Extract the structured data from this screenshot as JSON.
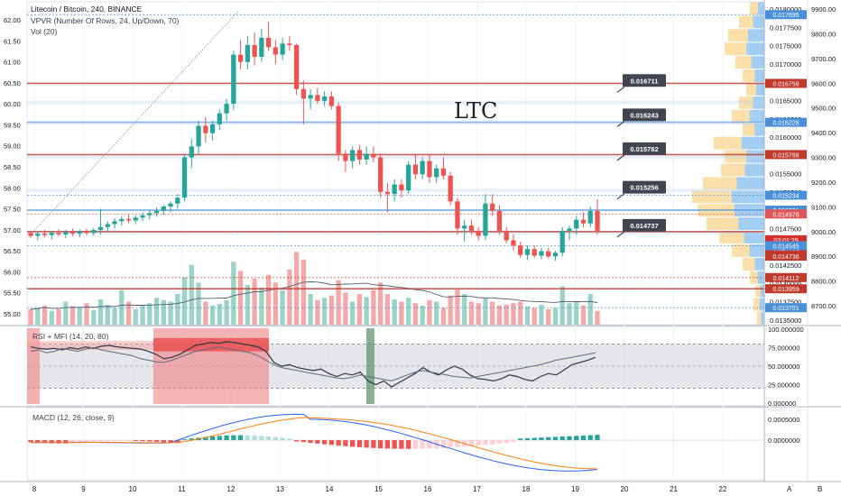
{
  "header": {
    "symbol_line": "Litecoin / Bitcoin, 240, BINANCE",
    "indicator_vpvr": "VPVR (Number Of Rows, 24, Up/Down, 70)",
    "indicator_vol": "Vol (20)",
    "rsi_title": "RSI + MFI (14, 20, 80)",
    "macd_title": "MACD (12, 26, close, 9)",
    "big_label": "LTC"
  },
  "chart_data": [
    {
      "type": "candlestick",
      "x_tick_labels": [
        "8",
        "9",
        "10",
        "11",
        "12",
        "13",
        "14",
        "15",
        "16",
        "17",
        "18",
        "19",
        "20",
        "21",
        "22"
      ],
      "right_axis_labels": [
        "0.0180000",
        "0.0177500",
        "0.0175000",
        "0.0170000",
        "0.0167500",
        "0.0165000",
        "0.0162500",
        "0.0160000",
        "0.0157500",
        "0.0155000",
        "0.0152500",
        "0.0150000",
        "0.0147500",
        "0.0145000",
        "0.0142500",
        "0.0140000",
        "0.0137500",
        "0.0135000"
      ],
      "left_axis_labels": [
        "62.00",
        "61.50",
        "61.00",
        "60.50",
        "60.00",
        "59.50",
        "59.00",
        "58.50",
        "58.00",
        "57.50",
        "57.00",
        "56.50",
        "56.00",
        "55.50",
        "55.00"
      ],
      "far_right_axis_labels": [
        "9900.00",
        "9800.00",
        "9700.00",
        "9600.00",
        "9500.00",
        "9400.00",
        "9300.00",
        "9200.00",
        "9100.00",
        "9000.00",
        "8900.00",
        "8800.00",
        "8700.00"
      ],
      "ylim": [
        0.01347,
        0.01787
      ],
      "candles": [
        [
          0.01472,
          0.01475,
          0.01465,
          0.01468
        ],
        [
          0.01468,
          0.01473,
          0.01462,
          0.01471
        ],
        [
          0.01471,
          0.01476,
          0.01466,
          0.01469
        ],
        [
          0.01469,
          0.01474,
          0.01463,
          0.01472
        ],
        [
          0.01472,
          0.01477,
          0.01467,
          0.0147
        ],
        [
          0.0147,
          0.01476,
          0.01465,
          0.01473
        ],
        [
          0.01473,
          0.01478,
          0.01468,
          0.01471
        ],
        [
          0.01471,
          0.01477,
          0.01466,
          0.01474
        ],
        [
          0.01474,
          0.01478,
          0.01469,
          0.01472
        ],
        [
          0.01472,
          0.01479,
          0.01468,
          0.01476
        ],
        [
          0.01476,
          0.01505,
          0.0147,
          0.0148
        ],
        [
          0.0148,
          0.01488,
          0.01474,
          0.01484
        ],
        [
          0.01484,
          0.01492,
          0.01478,
          0.01488
        ],
        [
          0.01488,
          0.01495,
          0.01482,
          0.01491
        ],
        [
          0.01491,
          0.01497,
          0.01485,
          0.01489
        ],
        [
          0.01489,
          0.01496,
          0.01484,
          0.01493
        ],
        [
          0.01493,
          0.015,
          0.01488,
          0.01496
        ],
        [
          0.01496,
          0.01503,
          0.0149,
          0.01499
        ],
        [
          0.01499,
          0.01507,
          0.01494,
          0.01502
        ],
        [
          0.01502,
          0.0151,
          0.01496,
          0.01508
        ],
        [
          0.01508,
          0.01515,
          0.015,
          0.01512
        ],
        [
          0.01512,
          0.01525,
          0.01505,
          0.0152
        ],
        [
          0.0152,
          0.0158,
          0.01515,
          0.01575
        ],
        [
          0.01575,
          0.016,
          0.0156,
          0.0159
        ],
        [
          0.0159,
          0.01625,
          0.0158,
          0.01618
        ],
        [
          0.01618,
          0.0163,
          0.01595,
          0.01608
        ],
        [
          0.01608,
          0.01625,
          0.01598,
          0.0162
        ],
        [
          0.0162,
          0.0164,
          0.01612,
          0.01635
        ],
        [
          0.01635,
          0.01655,
          0.01625,
          0.01648
        ],
        [
          0.01648,
          0.0172,
          0.0164,
          0.01715
        ],
        [
          0.01715,
          0.01735,
          0.01695,
          0.01705
        ],
        [
          0.01705,
          0.0174,
          0.01695,
          0.01728
        ],
        [
          0.01728,
          0.01745,
          0.017,
          0.01712
        ],
        [
          0.01712,
          0.0175,
          0.01705,
          0.01738
        ],
        [
          0.01738,
          0.0176,
          0.0172,
          0.01725
        ],
        [
          0.01725,
          0.01735,
          0.01702,
          0.01715
        ],
        [
          0.01715,
          0.01738,
          0.01708,
          0.0173
        ],
        [
          0.0173,
          0.0174,
          0.0172,
          0.01728
        ],
        [
          0.01728,
          0.0173,
          0.0166,
          0.01668
        ],
        [
          0.01668,
          0.0168,
          0.0162,
          0.01655
        ],
        [
          0.01655,
          0.01668,
          0.0164,
          0.0166
        ],
        [
          0.0166,
          0.0167,
          0.01648,
          0.01652
        ],
        [
          0.01652,
          0.01665,
          0.01645,
          0.01658
        ],
        [
          0.01658,
          0.01665,
          0.0164,
          0.01645
        ],
        [
          0.01645,
          0.0165,
          0.0157,
          0.0158
        ],
        [
          0.0158,
          0.01585,
          0.01555,
          0.0157
        ],
        [
          0.0157,
          0.0159,
          0.0156,
          0.01585
        ],
        [
          0.01585,
          0.01592,
          0.01565,
          0.01572
        ],
        [
          0.01572,
          0.0159,
          0.01565,
          0.0158
        ],
        [
          0.0158,
          0.0159,
          0.01568,
          0.01575
        ],
        [
          0.01575,
          0.0158,
          0.0152,
          0.01528
        ],
        [
          0.01528,
          0.0154,
          0.015,
          0.01525
        ],
        [
          0.01525,
          0.01545,
          0.01515,
          0.01538
        ],
        [
          0.01538,
          0.01545,
          0.0152,
          0.0153
        ],
        [
          0.0153,
          0.0157,
          0.01525,
          0.01565
        ],
        [
          0.01565,
          0.0158,
          0.01545,
          0.01552
        ],
        [
          0.01552,
          0.01575,
          0.01545,
          0.0157
        ],
        [
          0.0157,
          0.0158,
          0.0154,
          0.01548
        ],
        [
          0.01548,
          0.01565,
          0.0154,
          0.0156
        ],
        [
          0.0156,
          0.01575,
          0.01545,
          0.0155
        ],
        [
          0.0155,
          0.01555,
          0.0151,
          0.01515
        ],
        [
          0.01515,
          0.0152,
          0.0147,
          0.01478
        ],
        [
          0.01478,
          0.0149,
          0.0146,
          0.01482
        ],
        [
          0.01482,
          0.0149,
          0.0147,
          0.01475
        ],
        [
          0.01475,
          0.0148,
          0.01462,
          0.01468
        ],
        [
          0.01468,
          0.01525,
          0.01462,
          0.01512
        ],
        [
          0.01512,
          0.01525,
          0.01495,
          0.01502
        ],
        [
          0.01502,
          0.0151,
          0.0147,
          0.01475
        ],
        [
          0.01475,
          0.0148,
          0.01458,
          0.01462
        ],
        [
          0.01462,
          0.0147,
          0.01448,
          0.01455
        ],
        [
          0.01455,
          0.0146,
          0.01438,
          0.01442
        ],
        [
          0.01442,
          0.01455,
          0.01435,
          0.0145
        ],
        [
          0.0145,
          0.01455,
          0.01438,
          0.01441
        ],
        [
          0.01441,
          0.01452,
          0.01436,
          0.01447
        ],
        [
          0.01447,
          0.01452,
          0.01437,
          0.0144
        ],
        [
          0.0144,
          0.01448,
          0.01434,
          0.01445
        ],
        [
          0.01445,
          0.0148,
          0.0144,
          0.01475
        ],
        [
          0.01475,
          0.01482,
          0.01462,
          0.01478
        ],
        [
          0.01478,
          0.01495,
          0.0147,
          0.0149
        ],
        [
          0.0149,
          0.015,
          0.0148,
          0.01485
        ],
        [
          0.01485,
          0.01508,
          0.0148,
          0.01502
        ],
        [
          0.01502,
          0.01518,
          0.0147,
          0.01475
        ]
      ],
      "volumes": [
        0.2,
        0.22,
        0.25,
        0.18,
        0.2,
        0.3,
        0.24,
        0.22,
        0.28,
        0.19,
        0.33,
        0.26,
        0.22,
        0.45,
        0.3,
        0.2,
        0.26,
        0.28,
        0.35,
        0.32,
        0.3,
        0.4,
        0.62,
        0.78,
        0.55,
        0.3,
        0.25,
        0.27,
        0.32,
        0.82,
        0.7,
        0.52,
        0.6,
        0.48,
        0.65,
        0.55,
        0.45,
        0.72,
        0.95,
        0.85,
        0.4,
        0.32,
        0.35,
        0.38,
        0.58,
        0.42,
        0.3,
        0.4,
        0.36,
        0.45,
        0.55,
        0.4,
        0.33,
        0.3,
        0.35,
        0.28,
        0.25,
        0.32,
        0.3,
        0.22,
        0.38,
        0.46,
        0.4,
        0.3,
        0.28,
        0.35,
        0.3,
        0.25,
        0.26,
        0.28,
        0.3,
        0.24,
        0.22,
        0.26,
        0.2,
        0.22,
        0.5,
        0.28,
        0.3,
        0.25,
        0.4,
        0.18
      ],
      "price_levels": [
        {
          "value": 0.017695,
          "color": "#4a90d9",
          "style": "dotted",
          "label": "0.017695"
        },
        {
          "value": 0.016758,
          "color": "#c0392b",
          "style": "solid",
          "label": "0.016758"
        },
        {
          "value": 0.016228,
          "color": "#4a90d9",
          "style": "solid",
          "label": "0.016228"
        },
        {
          "value": 0.015788,
          "color": "#c0392b",
          "style": "solid",
          "label": "0.015788"
        },
        {
          "value": 0.015234,
          "color": "#4a90d9",
          "style": "dotted",
          "label": "0.015234"
        },
        {
          "value": 0.015031,
          "color": "#4a90d9",
          "style": "solid",
          "label": "0.015031"
        },
        {
          "value": 0.014978,
          "color": "#e05555",
          "style": "dotted",
          "label": "0.014978"
        },
        {
          "value": 0.014738,
          "color": "#d32f2f",
          "style": "solid",
          "label": "03:01:29"
        },
        {
          "value": 0.014738,
          "color": "#d32f2f",
          "style": "dotted",
          "label": "0.014738"
        },
        {
          "value": 0.014736,
          "color": "#c0392b",
          "style": "solid",
          "label": "0.014736"
        },
        {
          "value": 0.014545,
          "color": "#4a90d9",
          "style": "dotted",
          "label": "0.014545"
        },
        {
          "value": 0.014112,
          "color": "#c0392b",
          "style": "dotted",
          "label": "0.014112"
        },
        {
          "value": 0.013959,
          "color": "#c0392b",
          "style": "solid",
          "label": "0.013959"
        },
        {
          "value": 0.013701,
          "color": "#4a90d9",
          "style": "dotted",
          "label": "0.013701"
        }
      ],
      "callouts": [
        "0.016711",
        "0.016243",
        "0.015782",
        "0.015256",
        "0.014737"
      ]
    },
    {
      "type": "line",
      "title": "RSI + MFI (14, 20, 80)",
      "y_tick_labels": [
        "100.000000",
        "75.000000",
        "50.000000",
        "25.000000",
        "0.000000"
      ],
      "ylim": [
        0,
        100
      ],
      "bands": [
        20,
        80
      ]
    },
    {
      "type": "line",
      "title": "MACD (12, 26, close, 9)",
      "y_tick_labels": [
        "0.0005000",
        "0.0000000"
      ],
      "ylim": [
        -0.00095,
        0.00078
      ]
    }
  ],
  "colors": {
    "up": "#26a69a",
    "down": "#ef5350",
    "vol_up": "#9bd3c7",
    "vol_down": "#f4a8a7",
    "macd_line": "#2962ff",
    "signal_line": "#ff7f0e",
    "rsi_line": "#2f3542",
    "mfi_line": "#5f6b7a"
  },
  "axis_corner": {
    "a": "A",
    "b": "B"
  }
}
